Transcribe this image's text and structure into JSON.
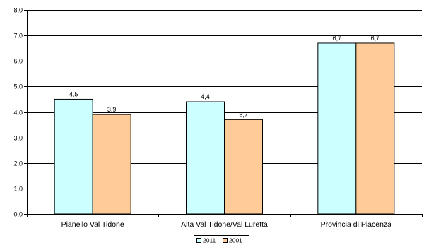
{
  "chart_data": {
    "type": "bar",
    "categories": [
      "Pianello Val Tidone",
      "Alta Val Tidone/Val Luretta",
      "Provincia di Piacenza"
    ],
    "series": [
      {
        "name": "2011",
        "values": [
          4.5,
          4.4,
          6.7
        ],
        "labels": [
          "4,5",
          "4,4",
          "6,7"
        ],
        "color": "#ccffff"
      },
      {
        "name": "2001",
        "values": [
          3.9,
          3.7,
          6.7
        ],
        "labels": [
          "3,9",
          "3,7",
          "6,7"
        ],
        "color": "#ffcc99"
      }
    ],
    "ylim": [
      0,
      8
    ],
    "yticks": [
      {
        "value": 0,
        "label": "0,0"
      },
      {
        "value": 1,
        "label": "1,0"
      },
      {
        "value": 2,
        "label": "2,0"
      },
      {
        "value": 3,
        "label": "3,0"
      },
      {
        "value": 4,
        "label": "4,0"
      },
      {
        "value": 5,
        "label": "5,0"
      },
      {
        "value": 6,
        "label": "6,0"
      },
      {
        "value": 7,
        "label": "7,0"
      },
      {
        "value": 8,
        "label": "8,0"
      }
    ],
    "grid": true,
    "legend": {
      "position": "bottom-center",
      "entries": [
        "2011",
        "2001"
      ]
    },
    "bar_outline_color": "#000000"
  }
}
